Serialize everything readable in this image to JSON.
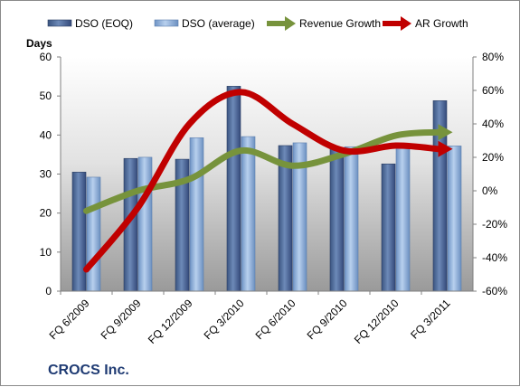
{
  "chart_data": {
    "type": "bar",
    "categories": [
      "FQ 6/2009",
      "FQ 9/2009",
      "FQ 12/2009",
      "FQ 3/2010",
      "FQ 6/2010",
      "FQ 9/2010",
      "FQ 12/2010",
      "FQ 3/2011"
    ],
    "series": [
      {
        "name": "DSO (EOQ)",
        "type": "bar",
        "axis": "left",
        "color": "#4f6a9a",
        "values": [
          30.5,
          34.0,
          33.8,
          52.5,
          37.3,
          36.5,
          32.6,
          48.8
        ]
      },
      {
        "name": "DSO (average)",
        "type": "bar",
        "axis": "left",
        "color": "#8fb2de",
        "values": [
          29.2,
          34.3,
          39.3,
          39.6,
          38.0,
          37.0,
          37.4,
          37.2
        ]
      },
      {
        "name": "Revenue Growth",
        "type": "line",
        "axis": "right",
        "color": "#77933c",
        "values": [
          -12,
          0,
          7,
          24,
          15,
          22,
          33,
          35
        ]
      },
      {
        "name": "AR Growth",
        "type": "line",
        "axis": "right",
        "color": "#c00000",
        "values": [
          -47,
          -10,
          40,
          59,
          40,
          24,
          27,
          25
        ]
      }
    ],
    "ylabel": "Days",
    "ylim": [
      0,
      60
    ],
    "yticks": [
      "0",
      "10",
      "20",
      "30",
      "40",
      "50",
      "60"
    ],
    "y2lim": [
      -60,
      80
    ],
    "y2ticks": [
      "-60%",
      "-40%",
      "-20%",
      "0%",
      "20%",
      "40%",
      "60%",
      "80%"
    ],
    "legend_position": "top",
    "grid": false
  },
  "company": "CROCS Inc."
}
